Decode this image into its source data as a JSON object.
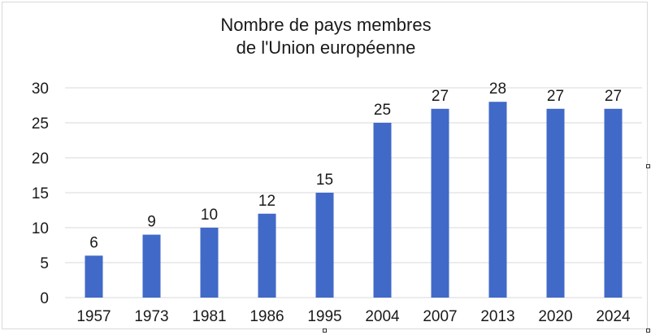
{
  "chart_data": {
    "type": "bar",
    "title_lines": [
      "Nombre de pays membres",
      "de l'Union européenne"
    ],
    "categories": [
      "1957",
      "1973",
      "1981",
      "1986",
      "1995",
      "2004",
      "2007",
      "2013",
      "2020",
      "2024"
    ],
    "values": [
      6,
      9,
      10,
      12,
      15,
      25,
      27,
      28,
      27,
      27
    ],
    "data_labels": [
      "6",
      "9",
      "10",
      "12",
      "15",
      "25",
      "27",
      "28",
      "27",
      "27"
    ],
    "y_ticks": [
      "0",
      "5",
      "10",
      "15",
      "20",
      "25",
      "30"
    ],
    "y_tick_values": [
      0,
      5,
      10,
      15,
      20,
      25,
      30
    ],
    "ylim": [
      0,
      30
    ],
    "grid": true,
    "legend": "none",
    "bar_color": "#4169c8"
  }
}
